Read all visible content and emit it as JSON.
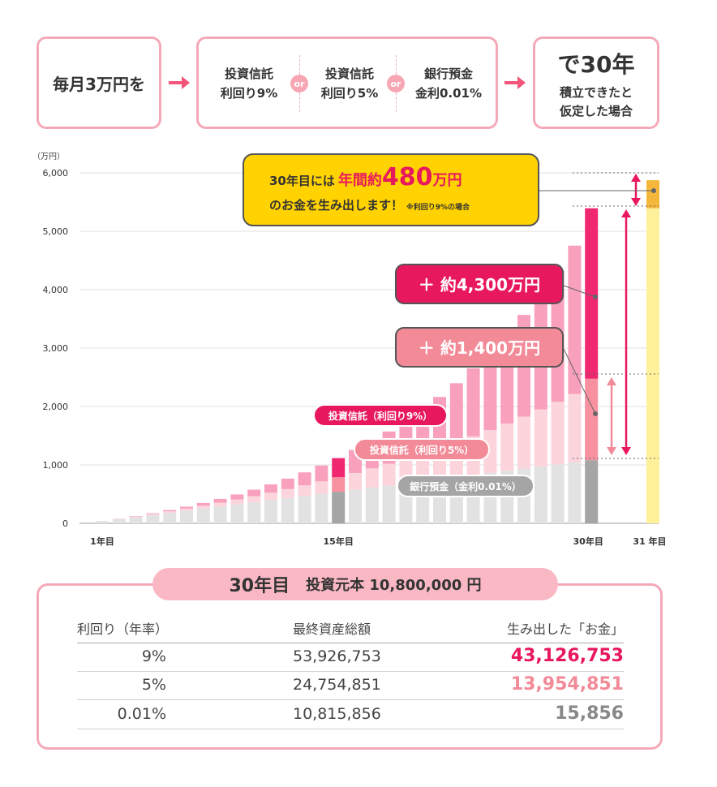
{
  "flow": {
    "start": "毎月3万円を",
    "options": [
      {
        "line1": "投資信託",
        "line2": "利回り9%"
      },
      {
        "line1": "投資信託",
        "line2": "利回り5%"
      },
      {
        "line1": "銀行預金",
        "line2": "金利0.01%"
      }
    ],
    "or_label": "or",
    "end_line1": "で30年",
    "end_line2": "積立できたと",
    "end_line3": "仮定した場合"
  },
  "chart_data": {
    "type": "bar",
    "yunit": "（万円）",
    "ylim": [
      0,
      6000
    ],
    "yticks": [
      "0",
      "1,000",
      "2,000",
      "3,000",
      "4,000",
      "5,000",
      "6,000"
    ],
    "xtick_labels": [
      "1年目",
      "15年目",
      "30年目",
      "31 年目"
    ],
    "grid": true,
    "years": [
      1,
      2,
      3,
      4,
      5,
      6,
      7,
      8,
      9,
      10,
      11,
      12,
      13,
      14,
      15,
      16,
      17,
      18,
      19,
      20,
      21,
      22,
      23,
      24,
      25,
      26,
      27,
      28,
      29,
      30
    ],
    "highlight_years": [
      15,
      30
    ],
    "series": [
      {
        "name": "銀行預金（金利0.01%）",
        "color": "#e2e2e2",
        "highlight_color": "#a5a5a5",
        "values": [
          36,
          72,
          108,
          144,
          180,
          216,
          252,
          288,
          324,
          360,
          396,
          432,
          468,
          504,
          540,
          576,
          612,
          648,
          684,
          720,
          756,
          792,
          828,
          864,
          900,
          936,
          972,
          1008,
          1044,
          1082
        ]
      },
      {
        "name": "投資信託（利回り5%）",
        "color": "#fbd4dc",
        "highlight_color": "#f7919f",
        "values": [
          37,
          76,
          118,
          161,
          206,
          253,
          303,
          354,
          408,
          464,
          524,
          586,
          650,
          718,
          789,
          862,
          940,
          1021,
          1106,
          1195,
          1288,
          1386,
          1488,
          1596,
          1708,
          1826,
          1949,
          2079,
          2214,
          2475
        ]
      },
      {
        "name": "投資信託（利回り9%）",
        "color": "#f9a0bd",
        "highlight_color": "#f0286f",
        "values": [
          38,
          79,
          124,
          173,
          227,
          285,
          349,
          418,
          494,
          576,
          667,
          765,
          872,
          989,
          1116,
          1255,
          1407,
          1572,
          1753,
          1949,
          2164,
          2398,
          2653,
          2932,
          3236,
          3568,
          3930,
          4324,
          4754,
          5393
        ]
      }
    ],
    "year31_label": "31 年目",
    "year31_value_9pct": 5873,
    "annotations": {
      "callout_prefix": "30年目には",
      "callout_emph_pre": "年間約",
      "callout_emph_num": "480",
      "callout_emph_post": "万円",
      "callout_line2": "のお金を生み出します！",
      "callout_note": "※利回り9%の場合",
      "gain_9": "＋ 約4,300万円",
      "gain_5": "＋ 約1,400万円",
      "label_9": "投資信託（利回り9%）",
      "label_5": "投資信託（利回り5%）",
      "label_bank": "銀行預金（金利0.01%）"
    }
  },
  "summary": {
    "year_label": "30年目",
    "principal_label": "投資元本 10,800,000 円",
    "headers": [
      "利回り（年率）",
      "最終資産総額",
      "生み出した「お金」"
    ],
    "rows": [
      {
        "rate": "9%",
        "total": "53,926,753",
        "earned": "43,126,753",
        "color": "#e8185f"
      },
      {
        "rate": "5%",
        "total": "24,754,851",
        "earned": "13,954,851",
        "color": "#f28a98"
      },
      {
        "rate": "0.01%",
        "total": "10,815,856",
        "earned": "15,856",
        "color": "#888888"
      }
    ]
  }
}
